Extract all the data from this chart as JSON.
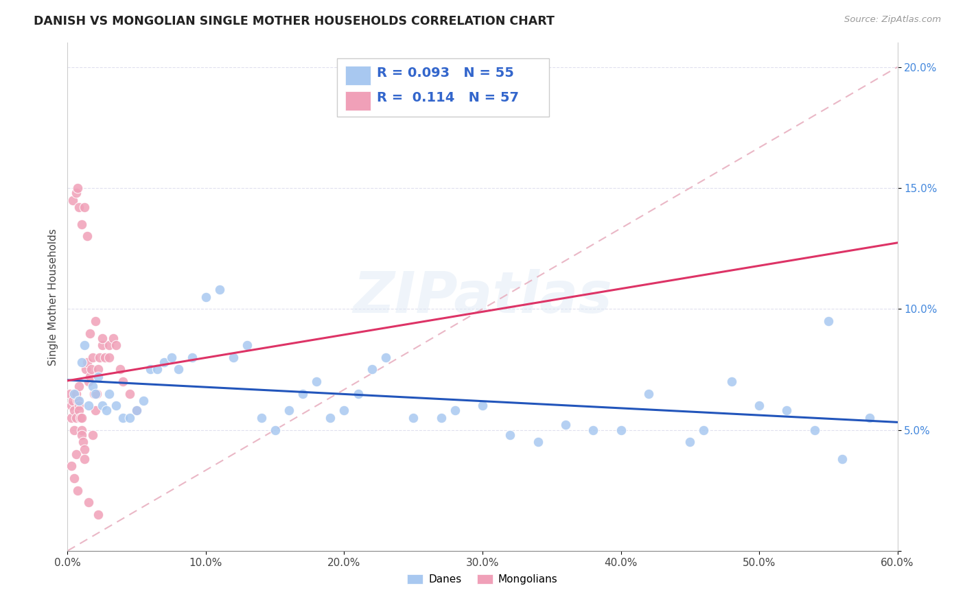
{
  "title": "DANISH VS MONGOLIAN SINGLE MOTHER HOUSEHOLDS CORRELATION CHART",
  "source": "Source: ZipAtlas.com",
  "ylabel": "Single Mother Households",
  "xlim": [
    0,
    60
  ],
  "ylim": [
    0,
    21
  ],
  "xticks": [
    0,
    10,
    20,
    30,
    40,
    50,
    60
  ],
  "xtick_labels": [
    "0.0%",
    "10.0%",
    "20.0%",
    "30.0%",
    "40.0%",
    "50.0%",
    "60.0%"
  ],
  "yticks": [
    0,
    5,
    10,
    15,
    20
  ],
  "ytick_labels": [
    "",
    "5.0%",
    "10.0%",
    "15.0%",
    "20.0%"
  ],
  "danes_R": 0.093,
  "danes_N": 55,
  "mongolians_R": 0.114,
  "mongolians_N": 57,
  "danes_color": "#a8c8f0",
  "mongolians_color": "#f0a0b8",
  "danes_line_color": "#2255bb",
  "mongolians_line_color": "#dd3366",
  "ref_line_color": "#e8b0c0",
  "watermark": "ZIPatlas",
  "background_color": "#ffffff",
  "grid_color": "#e0e0ee",
  "danes_x": [
    0.5,
    0.8,
    1.0,
    1.2,
    1.5,
    1.8,
    2.0,
    2.2,
    2.5,
    2.8,
    3.0,
    3.5,
    4.0,
    4.5,
    5.0,
    5.5,
    6.0,
    6.5,
    7.0,
    7.5,
    8.0,
    9.0,
    10.0,
    11.0,
    12.0,
    13.0,
    14.0,
    15.0,
    16.0,
    17.0,
    18.0,
    19.0,
    20.0,
    21.0,
    22.0,
    23.0,
    25.0,
    27.0,
    28.0,
    30.0,
    32.0,
    34.0,
    36.0,
    38.0,
    40.0,
    42.0,
    46.0,
    48.0,
    50.0,
    52.0,
    54.0,
    56.0,
    58.0,
    55.0,
    45.0
  ],
  "danes_y": [
    6.5,
    6.2,
    7.8,
    8.5,
    6.0,
    6.8,
    6.5,
    7.2,
    6.0,
    5.8,
    6.5,
    6.0,
    5.5,
    5.5,
    5.8,
    6.2,
    7.5,
    7.5,
    7.8,
    8.0,
    7.5,
    8.0,
    10.5,
    10.8,
    8.0,
    8.5,
    5.5,
    5.0,
    5.8,
    6.5,
    7.0,
    5.5,
    5.8,
    6.5,
    7.5,
    8.0,
    5.5,
    5.5,
    5.8,
    6.0,
    4.8,
    4.5,
    5.2,
    5.0,
    5.0,
    6.5,
    5.0,
    7.0,
    6.0,
    5.8,
    5.0,
    3.8,
    5.5,
    9.5,
    4.5
  ],
  "mongolians_x": [
    0.2,
    0.3,
    0.3,
    0.4,
    0.5,
    0.5,
    0.6,
    0.6,
    0.7,
    0.8,
    0.8,
    0.9,
    1.0,
    1.0,
    1.1,
    1.2,
    1.3,
    1.4,
    1.5,
    1.6,
    1.7,
    1.8,
    1.9,
    2.0,
    2.1,
    2.2,
    2.3,
    2.5,
    2.7,
    3.0,
    3.3,
    3.5,
    3.8,
    4.0,
    0.4,
    0.6,
    0.7,
    0.8,
    1.0,
    1.2,
    1.4,
    1.6,
    2.0,
    2.5,
    3.0,
    0.3,
    0.5,
    0.7,
    1.5,
    2.2,
    0.8,
    1.0,
    1.8,
    0.6,
    1.2,
    4.5,
    5.0
  ],
  "mongolians_y": [
    6.5,
    6.0,
    5.5,
    6.2,
    5.0,
    5.8,
    5.5,
    6.5,
    6.2,
    6.0,
    5.8,
    5.5,
    5.0,
    4.8,
    4.5,
    4.2,
    7.5,
    7.8,
    7.0,
    7.2,
    7.5,
    8.0,
    6.5,
    5.8,
    6.5,
    7.5,
    8.0,
    8.5,
    8.0,
    8.5,
    8.8,
    8.5,
    7.5,
    7.0,
    14.5,
    14.8,
    15.0,
    14.2,
    13.5,
    14.2,
    13.0,
    9.0,
    9.5,
    8.8,
    8.0,
    3.5,
    3.0,
    2.5,
    2.0,
    1.5,
    6.8,
    5.5,
    4.8,
    4.0,
    3.8,
    6.5,
    5.8
  ]
}
